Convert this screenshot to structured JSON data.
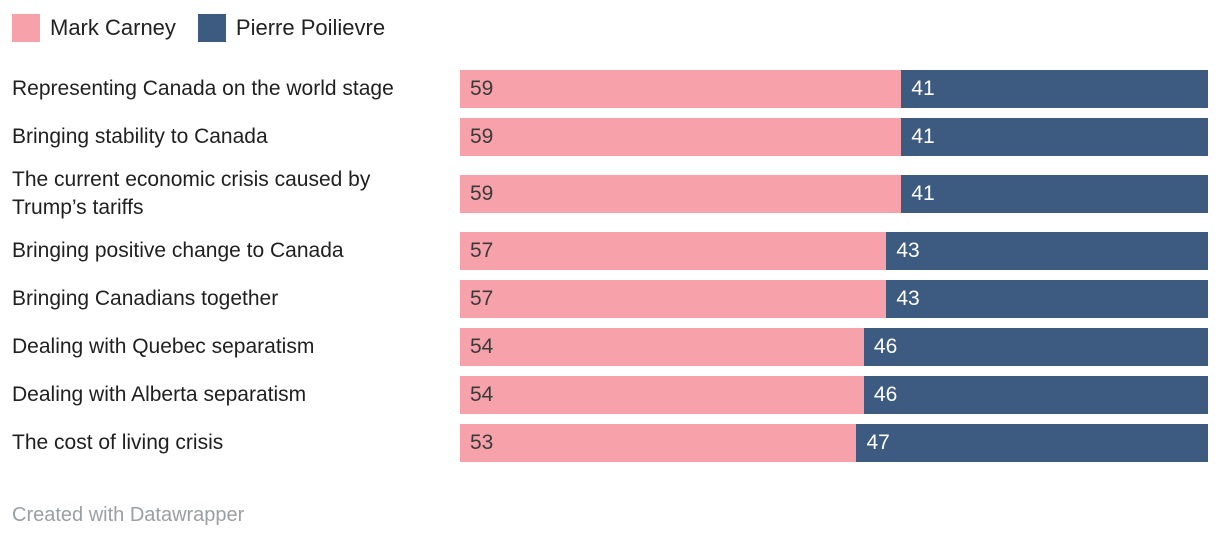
{
  "legend": {
    "items": [
      {
        "label": "Mark Carney",
        "color": "#f7a2ab"
      },
      {
        "label": "Pierre Poilievre",
        "color": "#3d5a80"
      }
    ]
  },
  "chart_data": {
    "type": "bar",
    "subtype": "stacked-horizontal",
    "title": "",
    "xlabel": "",
    "ylabel": "",
    "xlim": [
      0,
      100
    ],
    "grid": false,
    "legend_position": "top-left",
    "value_labels": "inside-left",
    "categories": [
      "Representing Canada on the world stage",
      "Bringing stability to Canada",
      "The current economic crisis caused by Trump’s tariffs",
      "Bringing positive change to Canada",
      "Bringing Canadians together",
      "Dealing with Quebec separatism",
      "Dealing with Alberta separatism",
      "The cost of living crisis"
    ],
    "series": [
      {
        "name": "Mark Carney",
        "color": "#f7a2ab",
        "text_color": "#3a3a3a",
        "values": [
          59,
          59,
          59,
          57,
          57,
          54,
          54,
          53
        ]
      },
      {
        "name": "Pierre Poilievre",
        "color": "#3d5a80",
        "text_color": "#ffffff",
        "values": [
          41,
          41,
          41,
          43,
          43,
          46,
          46,
          47
        ]
      }
    ]
  },
  "footer": {
    "attribution": "Created with Datawrapper"
  }
}
